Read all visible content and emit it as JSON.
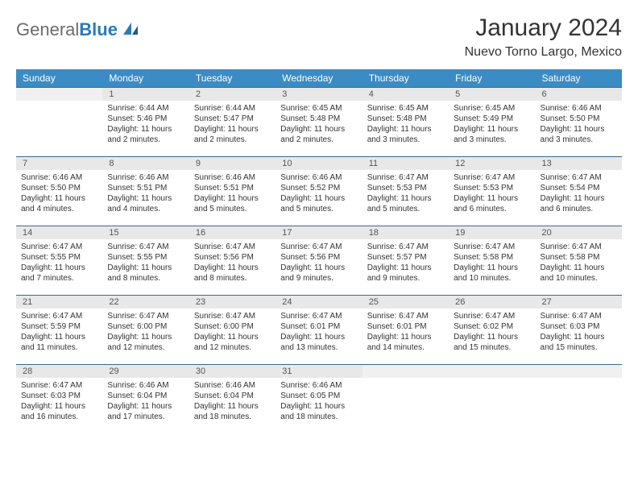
{
  "logo": {
    "part1": "General",
    "part2": "Blue"
  },
  "title": "January 2024",
  "subtitle": "Nuevo Torno Largo, Mexico",
  "weekdays": [
    "Sunday",
    "Monday",
    "Tuesday",
    "Wednesday",
    "Thursday",
    "Friday",
    "Saturday"
  ],
  "colors": {
    "header_bg": "#3b8bc4",
    "header_text": "#ffffff",
    "daynum_bg": "#e8e8e8",
    "border": "#3b6a8c"
  },
  "weeks": [
    [
      {
        "n": "",
        "lines": [
          "",
          "",
          "",
          ""
        ]
      },
      {
        "n": "1",
        "lines": [
          "Sunrise: 6:44 AM",
          "Sunset: 5:46 PM",
          "Daylight: 11 hours",
          "and 2 minutes."
        ]
      },
      {
        "n": "2",
        "lines": [
          "Sunrise: 6:44 AM",
          "Sunset: 5:47 PM",
          "Daylight: 11 hours",
          "and 2 minutes."
        ]
      },
      {
        "n": "3",
        "lines": [
          "Sunrise: 6:45 AM",
          "Sunset: 5:48 PM",
          "Daylight: 11 hours",
          "and 2 minutes."
        ]
      },
      {
        "n": "4",
        "lines": [
          "Sunrise: 6:45 AM",
          "Sunset: 5:48 PM",
          "Daylight: 11 hours",
          "and 3 minutes."
        ]
      },
      {
        "n": "5",
        "lines": [
          "Sunrise: 6:45 AM",
          "Sunset: 5:49 PM",
          "Daylight: 11 hours",
          "and 3 minutes."
        ]
      },
      {
        "n": "6",
        "lines": [
          "Sunrise: 6:46 AM",
          "Sunset: 5:50 PM",
          "Daylight: 11 hours",
          "and 3 minutes."
        ]
      }
    ],
    [
      {
        "n": "7",
        "lines": [
          "Sunrise: 6:46 AM",
          "Sunset: 5:50 PM",
          "Daylight: 11 hours",
          "and 4 minutes."
        ]
      },
      {
        "n": "8",
        "lines": [
          "Sunrise: 6:46 AM",
          "Sunset: 5:51 PM",
          "Daylight: 11 hours",
          "and 4 minutes."
        ]
      },
      {
        "n": "9",
        "lines": [
          "Sunrise: 6:46 AM",
          "Sunset: 5:51 PM",
          "Daylight: 11 hours",
          "and 5 minutes."
        ]
      },
      {
        "n": "10",
        "lines": [
          "Sunrise: 6:46 AM",
          "Sunset: 5:52 PM",
          "Daylight: 11 hours",
          "and 5 minutes."
        ]
      },
      {
        "n": "11",
        "lines": [
          "Sunrise: 6:47 AM",
          "Sunset: 5:53 PM",
          "Daylight: 11 hours",
          "and 5 minutes."
        ]
      },
      {
        "n": "12",
        "lines": [
          "Sunrise: 6:47 AM",
          "Sunset: 5:53 PM",
          "Daylight: 11 hours",
          "and 6 minutes."
        ]
      },
      {
        "n": "13",
        "lines": [
          "Sunrise: 6:47 AM",
          "Sunset: 5:54 PM",
          "Daylight: 11 hours",
          "and 6 minutes."
        ]
      }
    ],
    [
      {
        "n": "14",
        "lines": [
          "Sunrise: 6:47 AM",
          "Sunset: 5:55 PM",
          "Daylight: 11 hours",
          "and 7 minutes."
        ]
      },
      {
        "n": "15",
        "lines": [
          "Sunrise: 6:47 AM",
          "Sunset: 5:55 PM",
          "Daylight: 11 hours",
          "and 8 minutes."
        ]
      },
      {
        "n": "16",
        "lines": [
          "Sunrise: 6:47 AM",
          "Sunset: 5:56 PM",
          "Daylight: 11 hours",
          "and 8 minutes."
        ]
      },
      {
        "n": "17",
        "lines": [
          "Sunrise: 6:47 AM",
          "Sunset: 5:56 PM",
          "Daylight: 11 hours",
          "and 9 minutes."
        ]
      },
      {
        "n": "18",
        "lines": [
          "Sunrise: 6:47 AM",
          "Sunset: 5:57 PM",
          "Daylight: 11 hours",
          "and 9 minutes."
        ]
      },
      {
        "n": "19",
        "lines": [
          "Sunrise: 6:47 AM",
          "Sunset: 5:58 PM",
          "Daylight: 11 hours",
          "and 10 minutes."
        ]
      },
      {
        "n": "20",
        "lines": [
          "Sunrise: 6:47 AM",
          "Sunset: 5:58 PM",
          "Daylight: 11 hours",
          "and 10 minutes."
        ]
      }
    ],
    [
      {
        "n": "21",
        "lines": [
          "Sunrise: 6:47 AM",
          "Sunset: 5:59 PM",
          "Daylight: 11 hours",
          "and 11 minutes."
        ]
      },
      {
        "n": "22",
        "lines": [
          "Sunrise: 6:47 AM",
          "Sunset: 6:00 PM",
          "Daylight: 11 hours",
          "and 12 minutes."
        ]
      },
      {
        "n": "23",
        "lines": [
          "Sunrise: 6:47 AM",
          "Sunset: 6:00 PM",
          "Daylight: 11 hours",
          "and 12 minutes."
        ]
      },
      {
        "n": "24",
        "lines": [
          "Sunrise: 6:47 AM",
          "Sunset: 6:01 PM",
          "Daylight: 11 hours",
          "and 13 minutes."
        ]
      },
      {
        "n": "25",
        "lines": [
          "Sunrise: 6:47 AM",
          "Sunset: 6:01 PM",
          "Daylight: 11 hours",
          "and 14 minutes."
        ]
      },
      {
        "n": "26",
        "lines": [
          "Sunrise: 6:47 AM",
          "Sunset: 6:02 PM",
          "Daylight: 11 hours",
          "and 15 minutes."
        ]
      },
      {
        "n": "27",
        "lines": [
          "Sunrise: 6:47 AM",
          "Sunset: 6:03 PM",
          "Daylight: 11 hours",
          "and 15 minutes."
        ]
      }
    ],
    [
      {
        "n": "28",
        "lines": [
          "Sunrise: 6:47 AM",
          "Sunset: 6:03 PM",
          "Daylight: 11 hours",
          "and 16 minutes."
        ]
      },
      {
        "n": "29",
        "lines": [
          "Sunrise: 6:46 AM",
          "Sunset: 6:04 PM",
          "Daylight: 11 hours",
          "and 17 minutes."
        ]
      },
      {
        "n": "30",
        "lines": [
          "Sunrise: 6:46 AM",
          "Sunset: 6:04 PM",
          "Daylight: 11 hours",
          "and 18 minutes."
        ]
      },
      {
        "n": "31",
        "lines": [
          "Sunrise: 6:46 AM",
          "Sunset: 6:05 PM",
          "Daylight: 11 hours",
          "and 18 minutes."
        ]
      },
      {
        "n": "",
        "lines": [
          "",
          "",
          "",
          ""
        ]
      },
      {
        "n": "",
        "lines": [
          "",
          "",
          "",
          ""
        ]
      },
      {
        "n": "",
        "lines": [
          "",
          "",
          "",
          ""
        ]
      }
    ]
  ]
}
